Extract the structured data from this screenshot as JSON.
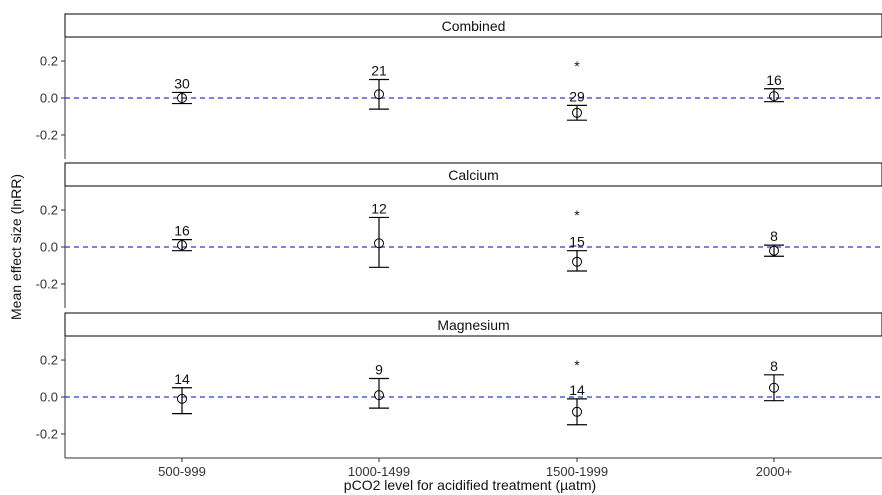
{
  "chart_data": {
    "type": "scatter",
    "xlabel": "pCO2 level for acidified treatment (µatm)",
    "ylabel": "Mean effect size (lnRR)",
    "categories": [
      "500-999",
      "1000-1499",
      "1500-1999",
      "2000+"
    ],
    "ylim": [
      -0.33,
      0.33
    ],
    "yticks": [
      -0.2,
      0.0,
      0.2
    ],
    "ytick_labels": [
      "-0.2",
      "0.0",
      "0.2"
    ],
    "reference_line": {
      "y": 0,
      "style": "dashed",
      "color": "#3333dd"
    },
    "grid": false,
    "panels": [
      {
        "title": "Combined",
        "points": [
          {
            "category": "500-999",
            "mean": 0.0,
            "lower": -0.03,
            "upper": 0.03,
            "n": "30",
            "sig": ""
          },
          {
            "category": "1000-1499",
            "mean": 0.02,
            "lower": -0.06,
            "upper": 0.1,
            "n": "21",
            "sig": ""
          },
          {
            "category": "1500-1999",
            "mean": -0.08,
            "lower": -0.12,
            "upper": -0.04,
            "n": "29",
            "sig": "*"
          },
          {
            "category": "2000+",
            "mean": 0.01,
            "lower": -0.02,
            "upper": 0.05,
            "n": "16",
            "sig": ""
          }
        ]
      },
      {
        "title": "Calcium",
        "points": [
          {
            "category": "500-999",
            "mean": 0.01,
            "lower": -0.02,
            "upper": 0.04,
            "n": "16",
            "sig": ""
          },
          {
            "category": "1000-1499",
            "mean": 0.02,
            "lower": -0.11,
            "upper": 0.16,
            "n": "12",
            "sig": ""
          },
          {
            "category": "1500-1999",
            "mean": -0.08,
            "lower": -0.13,
            "upper": -0.02,
            "n": "15",
            "sig": "*"
          },
          {
            "category": "2000+",
            "mean": -0.02,
            "lower": -0.05,
            "upper": 0.01,
            "n": "8",
            "sig": ""
          }
        ]
      },
      {
        "title": "Magnesium",
        "points": [
          {
            "category": "500-999",
            "mean": -0.01,
            "lower": -0.09,
            "upper": 0.05,
            "n": "14",
            "sig": ""
          },
          {
            "category": "1000-1499",
            "mean": 0.01,
            "lower": -0.06,
            "upper": 0.1,
            "n": "9",
            "sig": ""
          },
          {
            "category": "1500-1999",
            "mean": -0.08,
            "lower": -0.15,
            "upper": -0.01,
            "n": "14",
            "sig": "*"
          },
          {
            "category": "2000+",
            "mean": 0.05,
            "lower": -0.02,
            "upper": 0.12,
            "n": "8",
            "sig": ""
          }
        ]
      }
    ]
  }
}
